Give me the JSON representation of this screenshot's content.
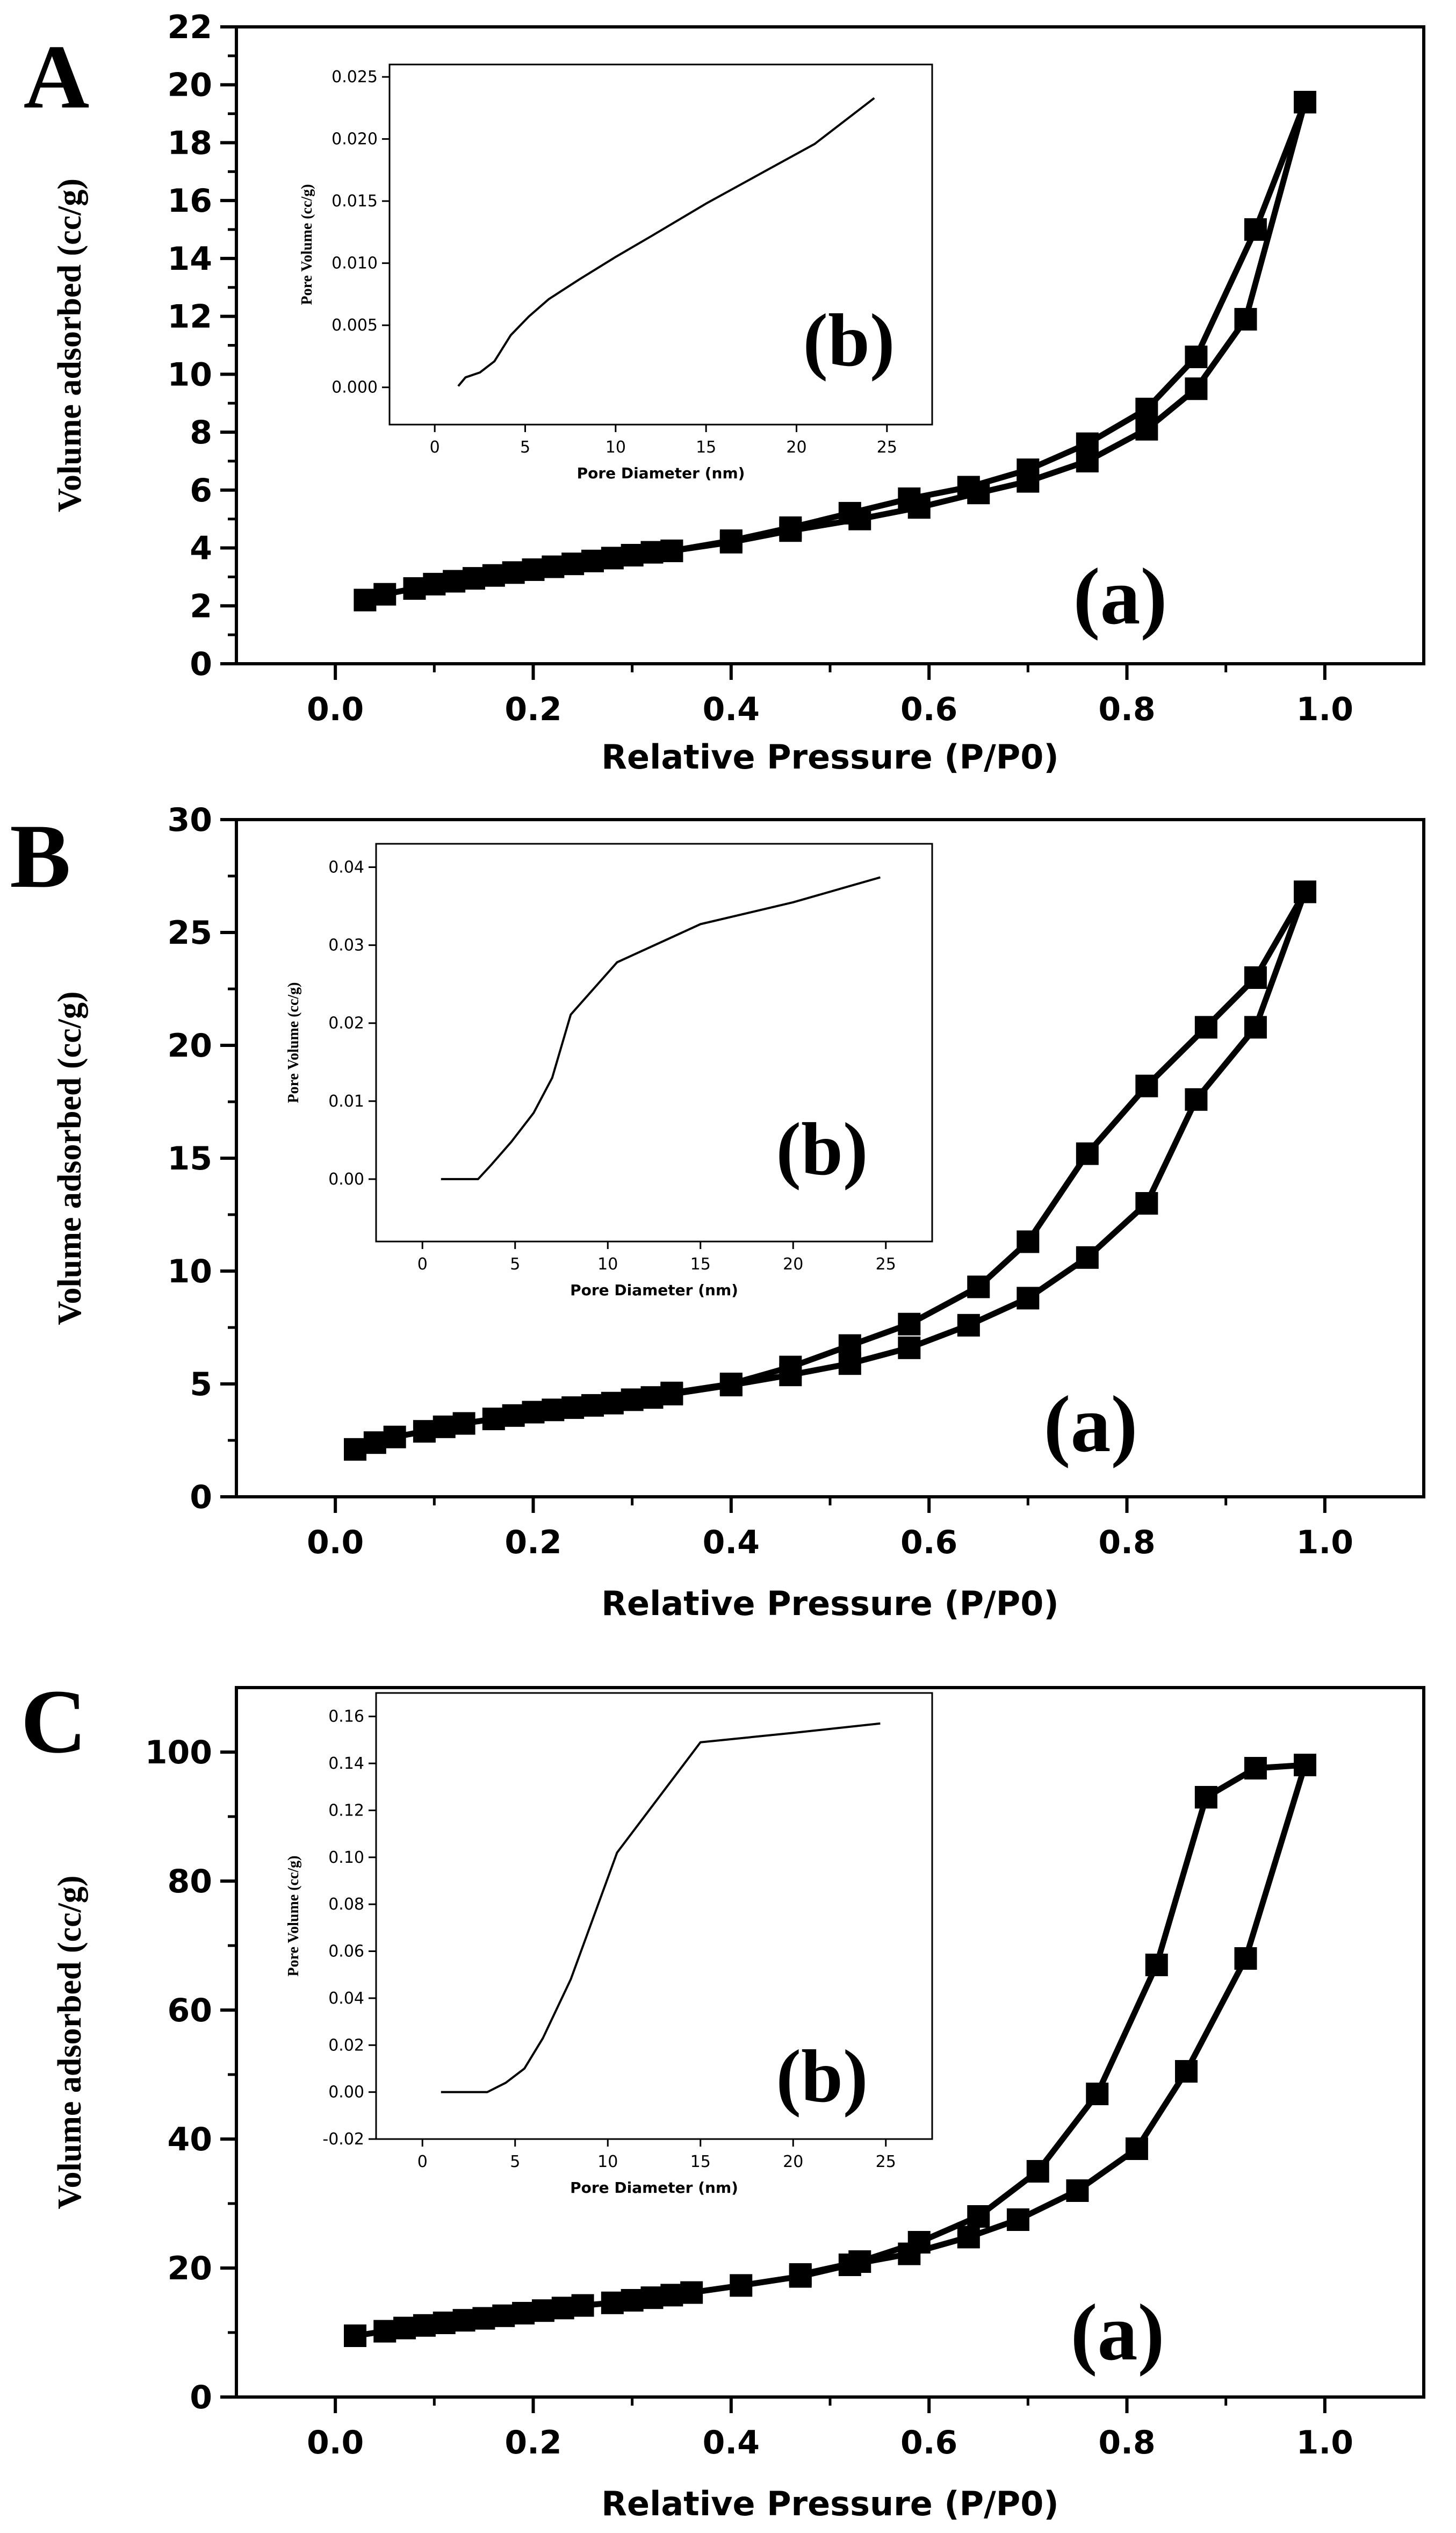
{
  "chart_data": [
    {
      "panel": "A",
      "type": "line",
      "xlabel": "Relative Pressure (P/P0)",
      "ylabel": "Volume adsorbed (cc/g)",
      "xlim": [
        -0.1,
        1.1
      ],
      "ylim": [
        0,
        22
      ],
      "xticks": [
        0.0,
        0.2,
        0.4,
        0.6,
        0.8,
        1.0
      ],
      "yticks": [
        0,
        2,
        4,
        6,
        8,
        10,
        12,
        14,
        16,
        18,
        20,
        22
      ],
      "tag": "(a)",
      "series": [
        {
          "x": [
            0.03,
            0.05,
            0.08,
            0.1,
            0.12,
            0.14,
            0.16,
            0.18,
            0.2,
            0.22,
            0.24,
            0.26,
            0.28,
            0.3,
            0.32,
            0.34,
            0.4,
            0.46,
            0.53,
            0.59,
            0.65,
            0.7,
            0.76,
            0.82,
            0.87,
            0.92,
            0.98
          ],
          "y": [
            2.2,
            2.4,
            2.6,
            2.75,
            2.85,
            2.95,
            3.05,
            3.15,
            3.25,
            3.35,
            3.45,
            3.55,
            3.65,
            3.75,
            3.85,
            3.9,
            4.2,
            4.6,
            5.0,
            5.4,
            5.9,
            6.3,
            7.0,
            8.1,
            9.5,
            11.9,
            19.4
          ]
        },
        {
          "x": [
            0.34,
            0.4,
            0.46,
            0.52,
            0.58,
            0.64,
            0.7,
            0.76,
            0.82,
            0.87,
            0.93,
            0.98
          ],
          "y": [
            3.9,
            4.25,
            4.7,
            5.2,
            5.7,
            6.1,
            6.7,
            7.6,
            8.8,
            10.6,
            15.0,
            19.4
          ]
        }
      ],
      "inset": {
        "type": "line",
        "xlabel": "Pore Diameter (nm)",
        "ylabel": "Pore Volume (cc/g)",
        "xlim": [
          -2.5,
          27.5
        ],
        "ylim": [
          -0.003,
          0.026
        ],
        "xticks": [
          0,
          5,
          10,
          15,
          20,
          25
        ],
        "yticks": [
          "0.000",
          "0.005",
          "0.010",
          "0.015",
          "0.020",
          "0.025"
        ],
        "tag": "(b)",
        "x": [
          1.3,
          1.7,
          2.5,
          3.3,
          4.2,
          5.2,
          6.3,
          8,
          10,
          12,
          15,
          18,
          21,
          24.3
        ],
        "y": [
          0.0001,
          0.0008,
          0.0012,
          0.0021,
          0.0042,
          0.0057,
          0.0071,
          0.0087,
          0.0105,
          0.0122,
          0.0148,
          0.0172,
          0.0196,
          0.0233
        ]
      }
    },
    {
      "panel": "B",
      "type": "line",
      "xlabel": "Relative Pressure (P/P0)",
      "ylabel": "Volume adsorbed (cc/g)",
      "xlim": [
        -0.1,
        1.1
      ],
      "ylim": [
        0,
        30
      ],
      "xticks": [
        0.0,
        0.2,
        0.4,
        0.6,
        0.8,
        1.0
      ],
      "yticks": [
        0,
        5,
        10,
        15,
        20,
        25,
        30
      ],
      "tag": "(a)",
      "series": [
        {
          "x": [
            0.02,
            0.04,
            0.06,
            0.09,
            0.11,
            0.13,
            0.16,
            0.18,
            0.2,
            0.22,
            0.24,
            0.26,
            0.28,
            0.3,
            0.32,
            0.34,
            0.4,
            0.46,
            0.52,
            0.58,
            0.64,
            0.7,
            0.76,
            0.82,
            0.87,
            0.93,
            0.98
          ],
          "y": [
            2.1,
            2.4,
            2.65,
            2.9,
            3.1,
            3.25,
            3.45,
            3.6,
            3.75,
            3.85,
            3.95,
            4.05,
            4.15,
            4.3,
            4.4,
            4.55,
            4.95,
            5.4,
            5.9,
            6.6,
            7.6,
            8.8,
            10.6,
            13.0,
            17.6,
            20.8,
            26.8
          ]
        },
        {
          "x": [
            0.34,
            0.4,
            0.46,
            0.52,
            0.58,
            0.65,
            0.7,
            0.76,
            0.82,
            0.88,
            0.93,
            0.98
          ],
          "y": [
            4.6,
            5.0,
            5.75,
            6.7,
            7.65,
            9.3,
            11.3,
            15.2,
            18.2,
            20.8,
            23.0,
            26.8
          ]
        }
      ],
      "inset": {
        "type": "line",
        "xlabel": "Pore Diameter (nm)",
        "ylabel": "Pore Volume (cc/g)",
        "xlim": [
          -2.5,
          27.5
        ],
        "ylim": [
          -0.008,
          0.043
        ],
        "xticks": [
          0,
          5,
          10,
          15,
          20,
          25
        ],
        "yticks": [
          "0.00",
          "0.01",
          "0.02",
          "0.03",
          "0.04"
        ],
        "tag": "(b)",
        "x": [
          1,
          3,
          3.7,
          4.8,
          6,
          7,
          8,
          10.5,
          15,
          20,
          24.7
        ],
        "y": [
          0,
          0,
          0.0018,
          0.0048,
          0.0085,
          0.013,
          0.0211,
          0.0278,
          0.0327,
          0.0355,
          0.0387
        ]
      }
    },
    {
      "panel": "C",
      "type": "line",
      "xlabel": "Relative Pressure (P/P0)",
      "ylabel": "Volume adsorbed (cc/g)",
      "xlim": [
        -0.1,
        1.1
      ],
      "ylim": [
        0,
        110
      ],
      "xticks": [
        0.0,
        0.2,
        0.4,
        0.6,
        0.8,
        1.0
      ],
      "yticks": [
        0,
        20,
        40,
        60,
        80,
        100
      ],
      "tag": "(a)",
      "series": [
        {
          "x": [
            0.02,
            0.05,
            0.07,
            0.09,
            0.11,
            0.13,
            0.15,
            0.17,
            0.19,
            0.21,
            0.23,
            0.25,
            0.28,
            0.3,
            0.32,
            0.34,
            0.36,
            0.41,
            0.47,
            0.52,
            0.58,
            0.64,
            0.69,
            0.75,
            0.81,
            0.86,
            0.92,
            0.98
          ],
          "y": [
            9.5,
            10.2,
            10.7,
            11.1,
            11.5,
            11.9,
            12.2,
            12.6,
            13.0,
            13.4,
            13.8,
            14.2,
            14.6,
            15.0,
            15.4,
            15.8,
            16.2,
            17.3,
            18.7,
            20.5,
            22.2,
            24.8,
            27.5,
            32.0,
            38.5,
            50.5,
            68.0,
            98.0
          ]
        },
        {
          "x": [
            0.47,
            0.53,
            0.59,
            0.65,
            0.71,
            0.77,
            0.83,
            0.88,
            0.93,
            0.98
          ],
          "y": [
            19.0,
            21.0,
            24.0,
            28.0,
            35.0,
            47.0,
            67.0,
            93.0,
            97.5,
            98.0
          ]
        }
      ],
      "inset": {
        "type": "line",
        "xlabel": "Pore Diameter (nm)",
        "ylabel": "Pore Volume (cc/g)",
        "xlim": [
          -2.5,
          27.5
        ],
        "ylim": [
          -0.02,
          0.17
        ],
        "xticks": [
          0,
          5,
          10,
          15,
          20,
          25
        ],
        "yticks": [
          "-0.02",
          "0.00",
          "0.02",
          "0.04",
          "0.06",
          "0.08",
          "0.10",
          "0.12",
          "0.14",
          "0.16"
        ],
        "tag": "(b)",
        "x": [
          1,
          3.5,
          4.5,
          5.5,
          6.5,
          8,
          10.5,
          15,
          20,
          24.7
        ],
        "y": [
          0,
          0,
          0.004,
          0.01,
          0.023,
          0.048,
          0.102,
          0.149,
          0.153,
          0.157
        ]
      }
    }
  ]
}
